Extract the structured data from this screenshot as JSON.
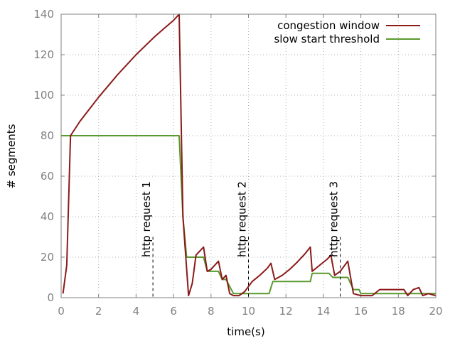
{
  "chart_data": {
    "type": "line",
    "xlabel": "time(s)",
    "ylabel": "# segments",
    "xlim": [
      0,
      20
    ],
    "ylim": [
      0,
      140
    ],
    "xticks": [
      0,
      2,
      4,
      6,
      8,
      10,
      12,
      14,
      16,
      18,
      20
    ],
    "yticks": [
      0,
      20,
      40,
      60,
      80,
      100,
      120,
      140
    ],
    "grid": true,
    "legend_position": "top-right",
    "series": [
      {
        "name": "congestion window",
        "color": "#8b1a1a",
        "points": [
          [
            0.1,
            2
          ],
          [
            0.3,
            16
          ],
          [
            0.5,
            80
          ],
          [
            1.0,
            87
          ],
          [
            1.5,
            93
          ],
          [
            2.0,
            99
          ],
          [
            2.5,
            104.5
          ],
          [
            3.0,
            110
          ],
          [
            3.5,
            115
          ],
          [
            4.0,
            120
          ],
          [
            4.5,
            124.5
          ],
          [
            5.0,
            129
          ],
          [
            5.5,
            133
          ],
          [
            6.0,
            137
          ],
          [
            6.3,
            140
          ],
          [
            6.5,
            40
          ],
          [
            6.8,
            1
          ],
          [
            7.0,
            7
          ],
          [
            7.2,
            21
          ],
          [
            7.6,
            25
          ],
          [
            7.8,
            13
          ],
          [
            8.0,
            14
          ],
          [
            8.4,
            18
          ],
          [
            8.6,
            9
          ],
          [
            8.8,
            11
          ],
          [
            9.0,
            2
          ],
          [
            9.2,
            1
          ],
          [
            9.5,
            1
          ],
          [
            9.8,
            3
          ],
          [
            10.2,
            8
          ],
          [
            10.6,
            11
          ],
          [
            11.0,
            14.5
          ],
          [
            11.2,
            17
          ],
          [
            11.4,
            9
          ],
          [
            11.8,
            11
          ],
          [
            12.2,
            14
          ],
          [
            12.6,
            17.5
          ],
          [
            13.0,
            21.5
          ],
          [
            13.3,
            25
          ],
          [
            13.4,
            13
          ],
          [
            13.8,
            16
          ],
          [
            14.2,
            19
          ],
          [
            14.4,
            21
          ],
          [
            14.6,
            11
          ],
          [
            14.9,
            13
          ],
          [
            15.3,
            18
          ],
          [
            15.6,
            2
          ],
          [
            16.0,
            1
          ],
          [
            16.6,
            1
          ],
          [
            17.0,
            4
          ],
          [
            17.5,
            4
          ],
          [
            18.3,
            4
          ],
          [
            18.5,
            1
          ],
          [
            18.8,
            4
          ],
          [
            19.1,
            5
          ],
          [
            19.3,
            1
          ],
          [
            19.6,
            2
          ],
          [
            20.0,
            1
          ]
        ]
      },
      {
        "name": "slow start threshold",
        "color": "#5a9a2e",
        "points": [
          [
            0.0,
            80
          ],
          [
            6.3,
            80
          ],
          [
            6.5,
            40
          ],
          [
            6.7,
            20
          ],
          [
            7.6,
            20
          ],
          [
            7.8,
            13
          ],
          [
            8.4,
            13
          ],
          [
            8.6,
            9
          ],
          [
            8.8,
            9
          ],
          [
            9.2,
            2
          ],
          [
            11.1,
            2
          ],
          [
            11.3,
            8
          ],
          [
            13.3,
            8
          ],
          [
            13.4,
            12
          ],
          [
            14.3,
            12
          ],
          [
            14.5,
            10
          ],
          [
            15.3,
            10
          ],
          [
            15.6,
            4
          ],
          [
            15.9,
            4
          ],
          [
            16.0,
            2
          ],
          [
            20.0,
            2
          ]
        ]
      }
    ],
    "annotations": [
      {
        "label": "http request 1",
        "x": 4.9
      },
      {
        "label": "http request 2",
        "x": 10.0
      },
      {
        "label": "http request 3",
        "x": 14.9
      }
    ]
  }
}
